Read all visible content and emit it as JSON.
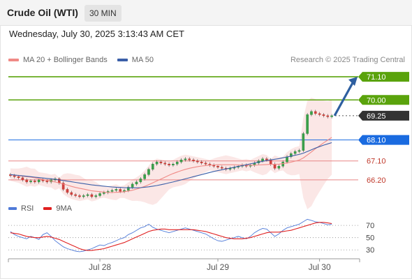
{
  "header": {
    "title": "Crude Oil (WTI)",
    "interval": "30 MIN",
    "datetime": "Wednesday, July 30, 2025 3:13:43 AM CET",
    "credit": "Research © 2025 Trading Central"
  },
  "legend": {
    "ma20": "MA 20 + Bollinger Bands",
    "ma50": "MA 50",
    "rsi": "RSI",
    "ma9": "9MA"
  },
  "colors": {
    "ma20": "#f08a86",
    "ma50": "#3b5fa8",
    "target": "#5aa30c",
    "pivot": "#1a6be0",
    "support": "#e88585",
    "support_text": "#c0392b",
    "last": "#333333",
    "arrow": "#2e5fa0",
    "rsi": "#4f7ad8",
    "rsi_ma": "#e02020"
  },
  "chart_data": [
    {
      "type": "candlestick",
      "x_ticks": [
        "Jul 28",
        "Jul 29",
        "Jul 30"
      ],
      "ylim": [
        65.4,
        71.6
      ],
      "levels": [
        {
          "value": 71.1,
          "label": "71.10",
          "role": "target"
        },
        {
          "value": 70.0,
          "label": "70.00",
          "role": "target"
        },
        {
          "value": 69.25,
          "label": "69.25",
          "role": "last"
        },
        {
          "value": 68.1,
          "label": "68.10",
          "role": "pivot"
        },
        {
          "value": 67.1,
          "label": "67.10",
          "role": "support"
        },
        {
          "value": 66.2,
          "label": "66.20",
          "role": "support"
        }
      ],
      "close": [
        66.4,
        66.35,
        66.3,
        66.2,
        66.1,
        66.15,
        66.1,
        66.2,
        66.15,
        66.1,
        66.2,
        66.25,
        66.05,
        65.75,
        65.6,
        65.5,
        65.45,
        65.4,
        65.45,
        65.5,
        65.4,
        65.45,
        65.55,
        65.6,
        65.65,
        65.7,
        65.75,
        65.65,
        65.7,
        65.85,
        66.0,
        66.1,
        66.25,
        66.45,
        66.7,
        66.95,
        67.05,
        67.0,
        66.95,
        66.9,
        66.95,
        67.05,
        67.15,
        67.2,
        67.15,
        67.1,
        67.05,
        67.0,
        66.95,
        66.9,
        66.85,
        66.8,
        66.75,
        66.7,
        66.75,
        66.8,
        66.85,
        66.9,
        66.85,
        66.9,
        67.0,
        67.1,
        67.2,
        67.15,
        66.95,
        66.75,
        66.85,
        67.05,
        67.3,
        67.45,
        67.55,
        67.6,
        68.4,
        69.3,
        69.45,
        69.35,
        69.3,
        69.25,
        69.2,
        69.25
      ],
      "ma20": [
        66.45,
        66.42,
        66.4,
        66.37,
        66.35,
        66.33,
        66.3,
        66.26,
        66.22,
        66.18,
        66.14,
        66.1,
        66.05,
        66.0,
        65.95,
        65.89,
        65.84,
        65.8,
        65.76,
        65.72,
        65.68,
        65.66,
        65.64,
        65.62,
        65.6,
        65.6,
        65.61,
        65.62,
        65.64,
        65.67,
        65.71,
        65.76,
        65.82,
        65.89,
        65.97,
        66.06,
        66.15,
        66.24,
        66.33,
        66.42,
        66.5,
        66.57,
        66.64,
        66.7,
        66.75,
        66.79,
        66.83,
        66.86,
        66.88,
        66.9,
        66.91,
        66.92,
        66.92,
        66.92,
        66.92,
        66.92,
        66.91,
        66.91,
        66.9,
        66.9,
        66.9,
        66.91,
        66.92,
        66.93,
        66.94,
        66.94,
        66.95,
        66.97,
        67.0,
        67.04,
        67.09,
        67.14,
        67.24,
        67.38,
        67.53,
        67.68,
        67.82,
        67.96,
        68.09,
        68.22
      ],
      "ma50": [
        66.45,
        66.43,
        66.41,
        66.39,
        66.37,
        66.35,
        66.33,
        66.31,
        66.29,
        66.27,
        66.25,
        66.23,
        66.2,
        66.17,
        66.14,
        66.11,
        66.08,
        66.05,
        66.02,
        65.99,
        65.96,
        65.94,
        65.92,
        65.9,
        65.88,
        65.86,
        65.85,
        65.84,
        65.83,
        65.82,
        65.82,
        65.82,
        65.83,
        65.85,
        65.87,
        65.9,
        65.93,
        65.97,
        66.01,
        66.06,
        66.1,
        66.15,
        66.2,
        66.25,
        66.3,
        66.35,
        66.4,
        66.45,
        66.5,
        66.55,
        66.6,
        66.64,
        66.68,
        66.72,
        66.76,
        66.8,
        66.84,
        66.88,
        66.92,
        66.96,
        67.0,
        67.04,
        67.08,
        67.12,
        67.15,
        67.18,
        67.21,
        67.25,
        67.29,
        67.33,
        67.37,
        67.41,
        67.47,
        67.55,
        67.63,
        67.71,
        67.78,
        67.85,
        67.91,
        67.97
      ]
    },
    {
      "type": "line",
      "ylim": [
        20,
        85
      ],
      "y_ticks": [
        70,
        50,
        30
      ],
      "rsi": [
        60,
        55,
        52,
        50,
        48,
        52,
        50,
        47,
        55,
        58,
        52,
        45,
        40,
        35,
        32,
        30,
        28,
        27,
        28,
        30,
        32,
        35,
        38,
        37,
        40,
        42,
        45,
        48,
        50,
        55,
        58,
        62,
        66,
        68,
        72,
        67,
        64,
        62,
        60,
        58,
        60,
        62,
        64,
        66,
        64,
        62,
        60,
        58,
        56,
        52,
        48,
        45,
        44,
        46,
        48,
        50,
        52,
        50,
        48,
        52,
        58,
        62,
        65,
        64,
        58,
        52,
        56,
        62,
        66,
        68,
        70,
        72,
        76,
        80,
        78,
        76,
        75,
        73,
        71,
        72
      ],
      "ma9": [
        58,
        57,
        56,
        54,
        52,
        51,
        50,
        50,
        51,
        52,
        51,
        49,
        47,
        44,
        41,
        38,
        35,
        32,
        30,
        29,
        29,
        30,
        31,
        32,
        34,
        36,
        38,
        40,
        42,
        45,
        48,
        51,
        54,
        57,
        60,
        62,
        63,
        64,
        64,
        63,
        63,
        63,
        63,
        63,
        63,
        63,
        62,
        61,
        60,
        58,
        56,
        54,
        52,
        50,
        49,
        48,
        48,
        48,
        49,
        50,
        52,
        54,
        56,
        58,
        59,
        59,
        59,
        60,
        61,
        62,
        64,
        66,
        68,
        70,
        72,
        74,
        75,
        75,
        74,
        73
      ]
    }
  ]
}
